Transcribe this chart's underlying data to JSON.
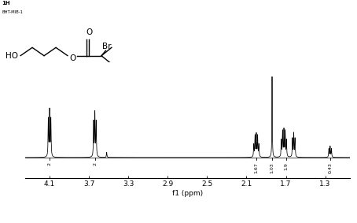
{
  "title_line1": "1H",
  "title_line2": "BHT-MIB-1",
  "xlabel": "f1 (ppm)",
  "xlim": [
    4.35,
    1.05
  ],
  "xticks": [
    4.1,
    3.7,
    3.3,
    2.9,
    2.5,
    2.1,
    1.7,
    1.3
  ],
  "tick_labels": [
    "4.1",
    "3.7",
    "3.3",
    "2.9",
    "2.5",
    "2.1",
    "1.7",
    "1.3"
  ],
  "background_color": "#ffffff",
  "spectrum_color": "#000000",
  "integral_labels": [
    {
      "x": 4.1,
      "label": "2"
    },
    {
      "x": 3.64,
      "label": "2"
    },
    {
      "x": 2.0,
      "label": "1.67"
    },
    {
      "x": 1.84,
      "label": "1.03"
    },
    {
      "x": 1.7,
      "label": "1.9"
    },
    {
      "x": 1.25,
      "label": "0.43"
    }
  ]
}
